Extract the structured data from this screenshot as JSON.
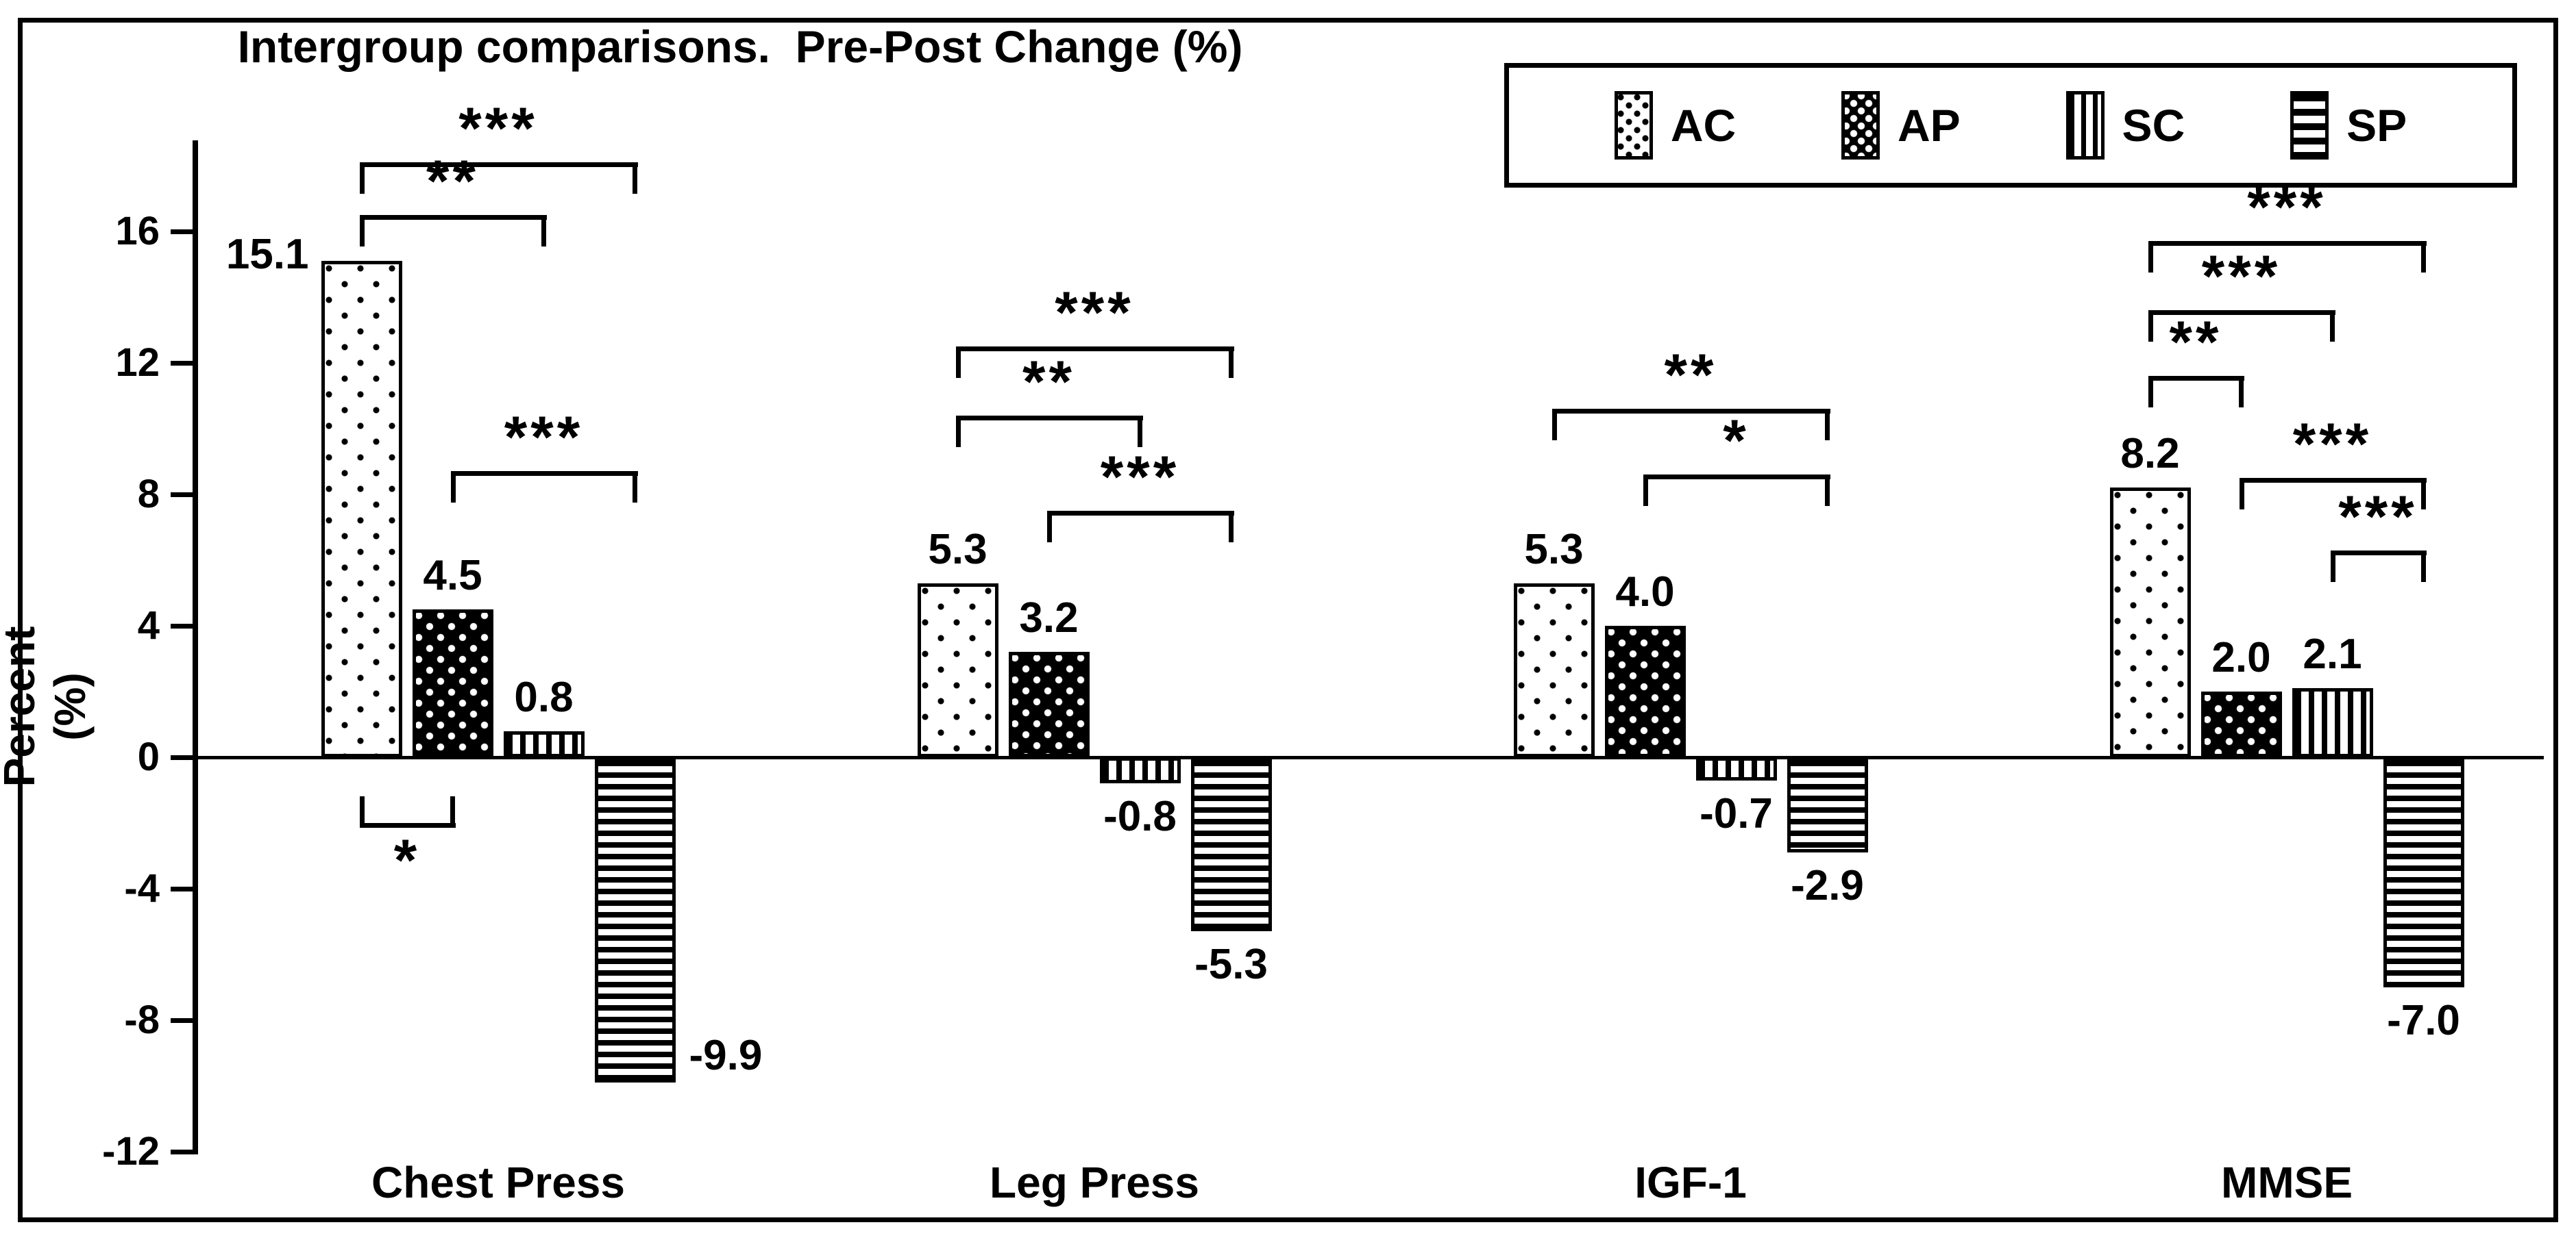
{
  "figure": {
    "background": "#ffffff",
    "border_color": "#000000",
    "ink_color": "#000000"
  },
  "chart_data": {
    "type": "bar",
    "title": "Intergroup comparisons.  Pre-Post Change (%)",
    "xlabel": "",
    "ylabel": "Percent (%)",
    "ylim": [
      -12,
      18
    ],
    "yticks": [
      16,
      12,
      8,
      4,
      0,
      -4,
      -8,
      -12
    ],
    "grid": false,
    "legend_position": "top-right",
    "categories": [
      "Chest Press",
      "Leg Press",
      "IGF-1",
      "MMSE"
    ],
    "series": [
      {
        "name": "AC",
        "pattern": "dots-sparse",
        "values": [
          15.1,
          5.3,
          5.3,
          8.2
        ]
      },
      {
        "name": "AP",
        "pattern": "dots-on-black",
        "values": [
          4.5,
          3.2,
          4.0,
          2.0
        ]
      },
      {
        "name": "SC",
        "pattern": "vertical-stripes",
        "values": [
          0.8,
          -0.8,
          -0.7,
          2.1
        ]
      },
      {
        "name": "SP",
        "pattern": "horizontal-stripes",
        "values": [
          -9.9,
          -5.3,
          -2.9,
          -7.0
        ]
      }
    ],
    "value_labels": [
      [
        "15.1",
        "4.5",
        "0.8",
        "-9.9"
      ],
      [
        "5.3",
        "3.2",
        "-0.8",
        "-5.3"
      ],
      [
        "5.3",
        "4.0",
        "-0.7",
        "-2.9"
      ],
      [
        "8.2",
        "2.0",
        "2.1",
        "-7.0"
      ]
    ],
    "annotations": [
      {
        "category": "Chest Press",
        "from": "AC",
        "to": "SP",
        "label": "***",
        "side": "above",
        "y": 18.1
      },
      {
        "category": "Chest Press",
        "from": "AC",
        "to": "SC",
        "label": "**",
        "side": "above",
        "y": 16.5
      },
      {
        "category": "Chest Press",
        "from": "AP",
        "to": "SP",
        "label": "***",
        "side": "above",
        "y": 8.7
      },
      {
        "category": "Chest Press",
        "from": "AC",
        "to": "AP",
        "label": "*",
        "side": "below",
        "y": -2.0
      },
      {
        "category": "Leg Press",
        "from": "AC",
        "to": "SP",
        "label": "***",
        "side": "above",
        "y": 12.5
      },
      {
        "category": "Leg Press",
        "from": "AC",
        "to": "SC",
        "label": "**",
        "side": "above",
        "y": 10.4
      },
      {
        "category": "Leg Press",
        "from": "AP",
        "to": "SP",
        "label": "***",
        "side": "above",
        "y": 7.5
      },
      {
        "category": "IGF-1",
        "from": "AC",
        "to": "SP",
        "label": "**",
        "side": "above",
        "y": 10.6
      },
      {
        "category": "IGF-1",
        "from": "AP",
        "to": "SP",
        "label": "*",
        "side": "above",
        "y": 8.6
      },
      {
        "category": "MMSE",
        "from": "AC",
        "to": "SP",
        "label": "***",
        "side": "above",
        "y": 15.7
      },
      {
        "category": "MMSE",
        "from": "AC",
        "to": "SC",
        "label": "***",
        "side": "above",
        "y": 13.6
      },
      {
        "category": "MMSE",
        "from": "AC",
        "to": "AP",
        "label": "**",
        "side": "above",
        "y": 11.6
      },
      {
        "category": "MMSE",
        "from": "AP",
        "to": "SP",
        "label": "***",
        "side": "above",
        "y": 8.5
      },
      {
        "category": "MMSE",
        "from": "SC",
        "to": "SP",
        "label": "***",
        "side": "above",
        "y": 6.3
      }
    ]
  }
}
